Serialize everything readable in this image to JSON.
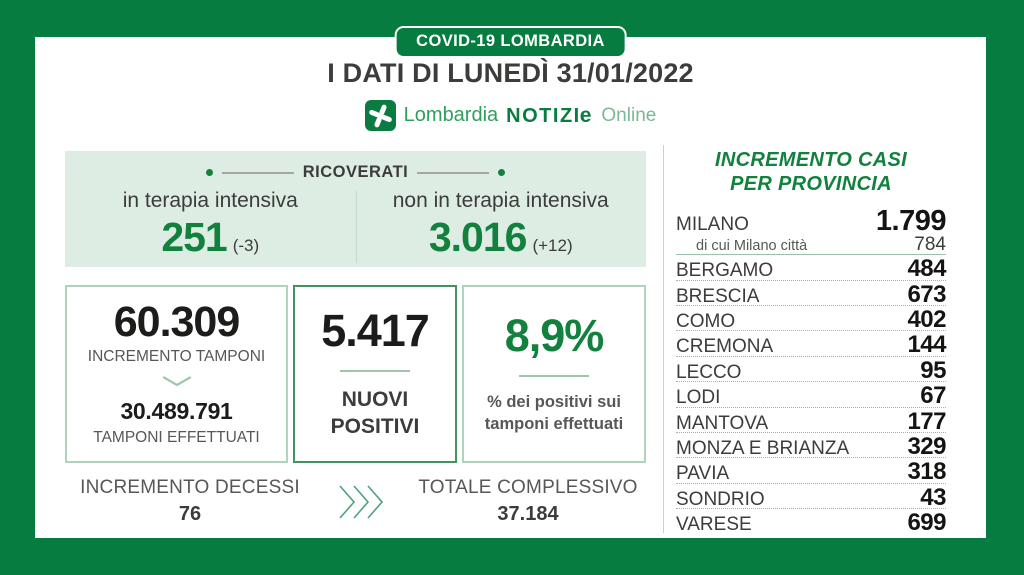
{
  "colors": {
    "brand_green": "#077C41",
    "value_green": "#12813E",
    "panel_bg": "#DEEDE4"
  },
  "header": {
    "badge": "COVID-19 LOMBARDIA",
    "title": "I DATI DI LUNEDÌ 31/01/2022",
    "logo": {
      "icon": "rosa-camuna",
      "lombardia": "Lombardia",
      "notizie": "NOTIZI",
      "notizie_e": "e",
      "online": "Online"
    }
  },
  "ricoverati": {
    "header": "RICOVERATI",
    "items": [
      {
        "label": "in terapia intensiva",
        "value": "251",
        "delta": "(-3)"
      },
      {
        "label": "non in terapia intensiva",
        "value": "3.016",
        "delta": "(+12)"
      }
    ]
  },
  "boxes": {
    "tamponi": {
      "value": "60.309",
      "label": "INCREMENTO TAMPONI",
      "total": "30.489.791",
      "total_label": "TAMPONI EFFETTUATI"
    },
    "positivi": {
      "value": "5.417",
      "label": "NUOVI POSITIVI"
    },
    "percentuale": {
      "value": "8,9%",
      "label": "% dei positivi sui tamponi effettuati"
    }
  },
  "footer": {
    "decessi_label": "INCREMENTO DECESSI",
    "decessi_value": "76",
    "totale_label": "TOTALE COMPLESSIVO",
    "totale_value": "37.184"
  },
  "provinces": {
    "title_line1": "INCREMENTO CASI",
    "title_line2": "PER PROVINCIA",
    "rows": [
      {
        "name": "MILANO",
        "value": "1.799",
        "large": true,
        "sub": {
          "name": "di cui Milano città",
          "value": "784"
        }
      },
      {
        "name": "BERGAMO",
        "value": "484"
      },
      {
        "name": "BRESCIA",
        "value": "673"
      },
      {
        "name": "COMO",
        "value": "402"
      },
      {
        "name": "CREMONA",
        "value": "144"
      },
      {
        "name": "LECCO",
        "value": "95"
      },
      {
        "name": "LODI",
        "value": "67"
      },
      {
        "name": "MANTOVA",
        "value": "177"
      },
      {
        "name": "MONZA E BRIANZA",
        "value": "329"
      },
      {
        "name": "PAVIA",
        "value": "318"
      },
      {
        "name": "SONDRIO",
        "value": "43"
      },
      {
        "name": "VARESE",
        "value": "699"
      }
    ]
  },
  "chart_data": {
    "type": "table",
    "title": "I DATI DI LUNEDÌ 31/01/2022 — COVID-19 LOMBARDIA",
    "summary": {
      "ricoverati_terapia_intensiva": 251,
      "ricoverati_terapia_intensiva_delta": -3,
      "ricoverati_non_terapia_intensiva": 3016,
      "ricoverati_non_terapia_intensiva_delta": 12,
      "incremento_tamponi": 60309,
      "tamponi_effettuati": 30489791,
      "nuovi_positivi": 5417,
      "percentuale_positivi_su_tamponi": 8.9,
      "incremento_decessi": 76,
      "totale_complessivo_decessi": 37184
    },
    "categories": [
      "MILANO",
      "di cui Milano città",
      "BERGAMO",
      "BRESCIA",
      "COMO",
      "CREMONA",
      "LECCO",
      "LODI",
      "MANTOVA",
      "MONZA E BRIANZA",
      "PAVIA",
      "SONDRIO",
      "VARESE"
    ],
    "values": [
      1799,
      784,
      484,
      673,
      402,
      144,
      95,
      67,
      177,
      329,
      318,
      43,
      699
    ],
    "series_label": "Incremento casi per provincia"
  }
}
